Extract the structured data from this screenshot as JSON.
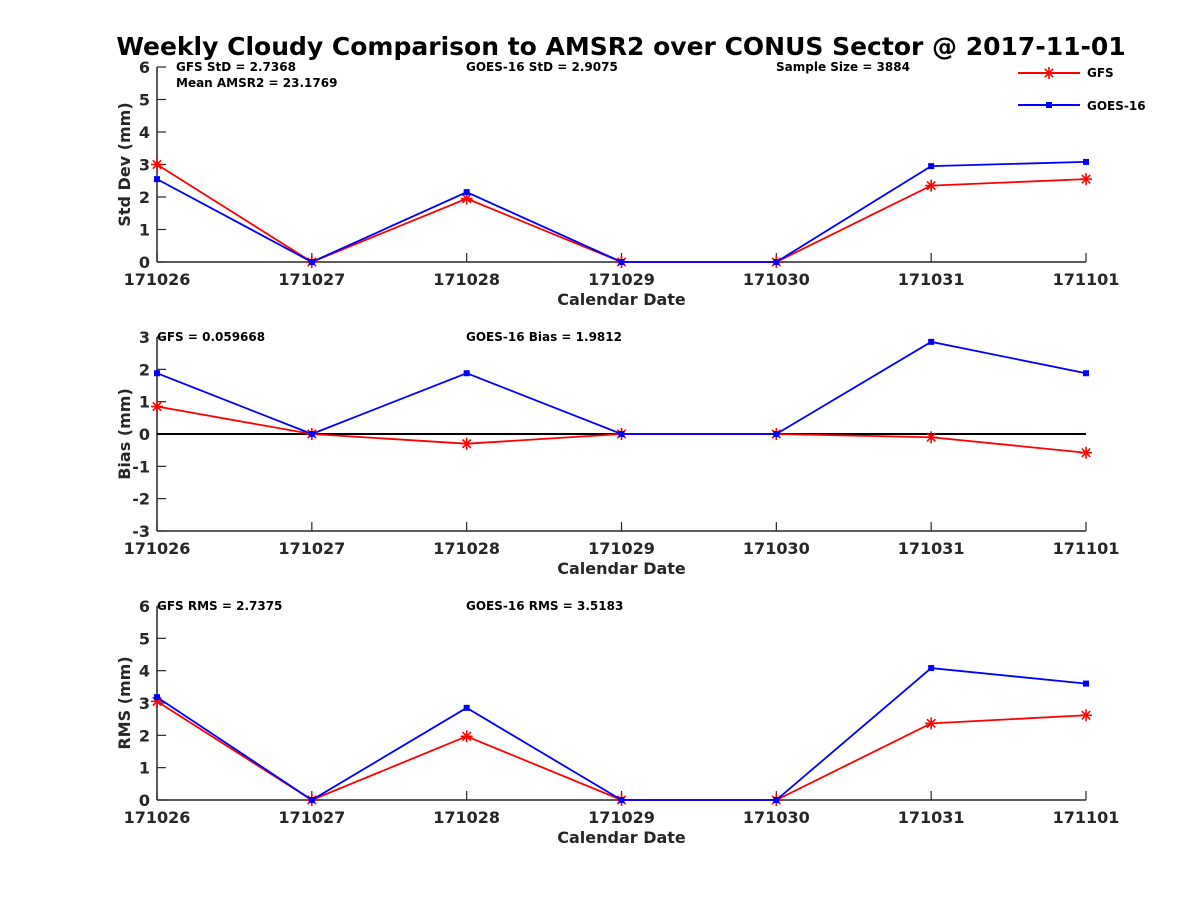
{
  "title": "Weekly Cloudy Comparison to AMSR2 over CONUS Sector @ 2017-11-01",
  "legend": {
    "placement": "top-right",
    "entries": [
      {
        "label": "GFS",
        "color": "#ff0000",
        "marker": "asterisk"
      },
      {
        "label": "GOES-16",
        "color": "#0000ff",
        "marker": "square"
      }
    ]
  },
  "chart_data": [
    {
      "type": "line",
      "xlabel": "Calendar Date",
      "ylabel": "Std Dev (mm)",
      "ylim": [
        0,
        6
      ],
      "yticks": [
        "0",
        "1",
        "2",
        "3",
        "4",
        "5",
        "6"
      ],
      "categories": [
        "171026",
        "171027",
        "171028",
        "171029",
        "171030",
        "171031",
        "171101"
      ],
      "zero_line": false,
      "annotations": [
        {
          "text": "GFS StD = 2.7368",
          "row": 0,
          "col": 0
        },
        {
          "text": "Mean AMSR2 = 23.1769",
          "row": 1,
          "col": 0
        },
        {
          "text": "GOES-16 StD = 2.9075",
          "row": 0,
          "col": 2
        },
        {
          "text": "Sample Size = 3884",
          "row": 0,
          "col": 4
        }
      ],
      "series": [
        {
          "name": "GFS",
          "color": "#ff0000",
          "marker": "asterisk",
          "values": [
            3.0,
            0.0,
            1.95,
            0.0,
            0.0,
            2.35,
            2.55
          ]
        },
        {
          "name": "GOES-16",
          "color": "#0000ff",
          "marker": "square",
          "values": [
            2.55,
            0.0,
            2.15,
            0.0,
            0.0,
            2.95,
            3.08
          ]
        }
      ]
    },
    {
      "type": "line",
      "xlabel": "Calendar Date",
      "ylabel": "Bias (mm)",
      "ylim": [
        -3,
        3
      ],
      "yticks": [
        "-3",
        "-2",
        "-1",
        "0",
        "1",
        "2",
        "3"
      ],
      "categories": [
        "171026",
        "171027",
        "171028",
        "171029",
        "171030",
        "171031",
        "171101"
      ],
      "zero_line": true,
      "annotations": [
        {
          "text": "GFS = 0.059668",
          "row": 0,
          "col": 0
        },
        {
          "text": "GOES-16 Bias  = 1.9812",
          "row": 0,
          "col": 2
        }
      ],
      "series": [
        {
          "name": "GFS",
          "color": "#ff0000",
          "marker": "asterisk",
          "values": [
            0.85,
            0.0,
            -0.3,
            0.0,
            0.0,
            -0.1,
            -0.58
          ]
        },
        {
          "name": "GOES-16",
          "color": "#0000ff",
          "marker": "square",
          "values": [
            1.88,
            0.0,
            1.88,
            0.0,
            0.0,
            2.85,
            1.88
          ]
        }
      ]
    },
    {
      "type": "line",
      "xlabel": "Calendar Date",
      "ylabel": "RMS (mm)",
      "ylim": [
        0,
        6
      ],
      "yticks": [
        "0",
        "1",
        "2",
        "3",
        "4",
        "5",
        "6"
      ],
      "categories": [
        "171026",
        "171027",
        "171028",
        "171029",
        "171030",
        "171031",
        "171101"
      ],
      "zero_line": false,
      "annotations": [
        {
          "text": "GFS RMS = 2.7375",
          "row": 0,
          "col": 0
        },
        {
          "text": "GOES-16 RMS = 3.5183",
          "row": 0,
          "col": 2
        }
      ],
      "series": [
        {
          "name": "GFS",
          "color": "#ff0000",
          "marker": "asterisk",
          "values": [
            3.05,
            0.0,
            1.97,
            0.0,
            0.0,
            2.37,
            2.62
          ]
        },
        {
          "name": "GOES-16",
          "color": "#0000ff",
          "marker": "square",
          "values": [
            3.18,
            0.0,
            2.85,
            0.0,
            0.0,
            4.08,
            3.6
          ]
        }
      ]
    }
  ]
}
